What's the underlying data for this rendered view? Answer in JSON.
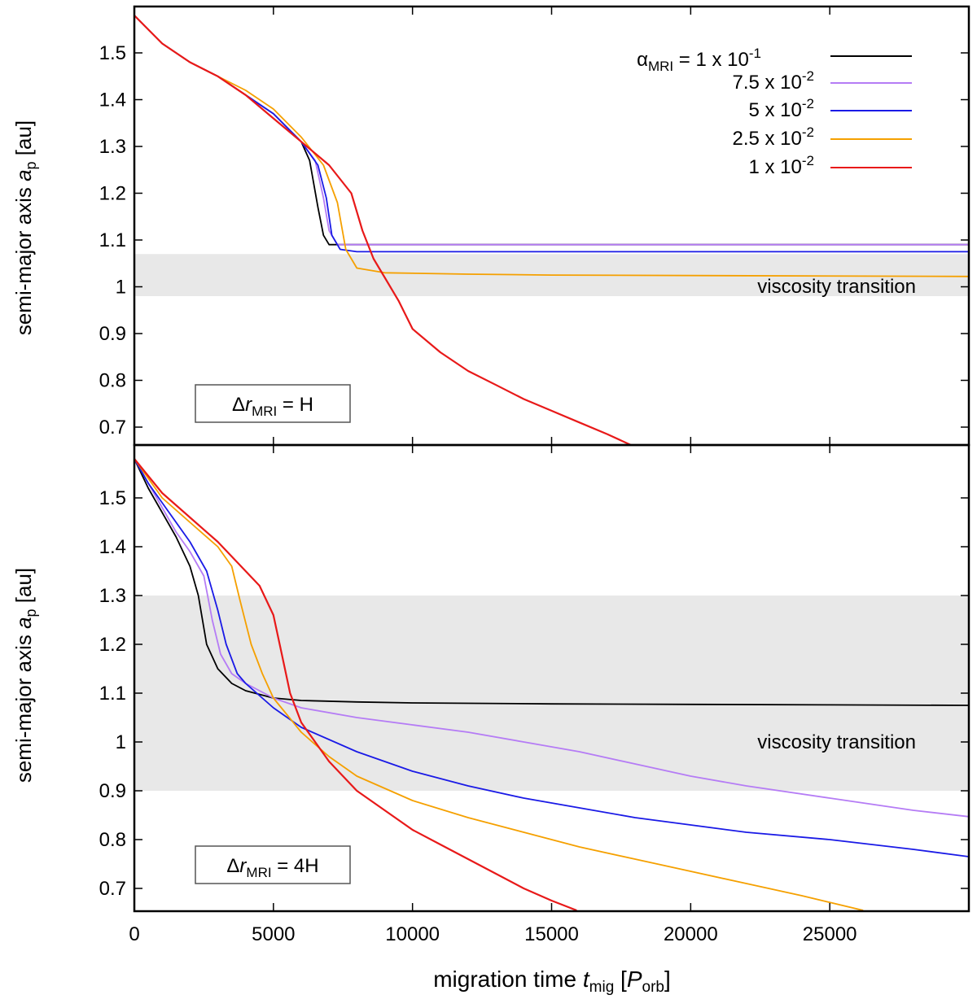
{
  "chart_data": [
    {
      "type": "line",
      "panel": "top",
      "xlim": [
        0,
        30000
      ],
      "ylim": [
        0.65,
        1.6
      ],
      "x_ticks": [
        0,
        5000,
        10000,
        15000,
        20000,
        25000
      ],
      "y_ticks": [
        0.7,
        0.8,
        0.9,
        1,
        1.1,
        1.2,
        1.3,
        1.4,
        1.5
      ],
      "y_tick_labels": [
        "0.7",
        "0.8",
        "0.9",
        "1",
        "1.1",
        "1.2",
        "1.3",
        "1.4",
        "1.5"
      ],
      "ylabel": {
        "prefix": "semi-major axis ",
        "var": "a",
        "sub": "p",
        "suffix": " [au]"
      },
      "band": {
        "y0": 0.98,
        "y1": 1.07,
        "label": "viscosity transition"
      },
      "box_label": {
        "prefix": "Δ",
        "var": "r",
        "sub": "MRI",
        "suffix": " = H"
      },
      "series": [
        {
          "name": "1 x 10^-1",
          "color": "#000000",
          "x": [
            0,
            1000,
            2000,
            3000,
            4000,
            5000,
            6000,
            6300,
            6600,
            6800,
            7000,
            7200,
            8000,
            15000,
            30000
          ],
          "y": [
            1.58,
            1.52,
            1.48,
            1.45,
            1.41,
            1.37,
            1.31,
            1.27,
            1.17,
            1.11,
            1.09,
            1.09,
            1.09,
            1.09,
            1.09
          ]
        },
        {
          "name": "7.5 x 10^-2",
          "color": "#b57cf5",
          "x": [
            0,
            1000,
            2000,
            3000,
            4000,
            5000,
            6000,
            6500,
            6800,
            7000,
            7300,
            8000,
            15000,
            30000
          ],
          "y": [
            1.58,
            1.52,
            1.48,
            1.45,
            1.41,
            1.37,
            1.31,
            1.27,
            1.19,
            1.12,
            1.09,
            1.09,
            1.09,
            1.09
          ]
        },
        {
          "name": "5 x 10^-2",
          "color": "#1a1ae6",
          "x": [
            0,
            1000,
            2000,
            3000,
            4000,
            5000,
            6000,
            6600,
            6900,
            7100,
            7400,
            8000,
            15000,
            30000
          ],
          "y": [
            1.58,
            1.52,
            1.48,
            1.45,
            1.41,
            1.37,
            1.31,
            1.26,
            1.19,
            1.11,
            1.08,
            1.075,
            1.075,
            1.075
          ]
        },
        {
          "name": "2.5 x 10^-2",
          "color": "#f5a000",
          "x": [
            0,
            1000,
            2000,
            3000,
            4000,
            5000,
            6000,
            6800,
            7300,
            7600,
            8000,
            9000,
            12000,
            15000,
            30000
          ],
          "y": [
            1.58,
            1.52,
            1.48,
            1.45,
            1.42,
            1.38,
            1.32,
            1.26,
            1.18,
            1.08,
            1.04,
            1.03,
            1.027,
            1.025,
            1.022
          ]
        },
        {
          "name": "1 x 10^-2",
          "color": "#e81919",
          "x": [
            0,
            1000,
            2000,
            3000,
            4000,
            5000,
            6000,
            7000,
            7800,
            8200,
            8600,
            9000,
            9500,
            10000,
            11000,
            12000,
            13000,
            14000,
            15000,
            16000,
            17000,
            18100
          ],
          "y": [
            1.58,
            1.52,
            1.48,
            1.45,
            1.41,
            1.36,
            1.31,
            1.26,
            1.2,
            1.12,
            1.06,
            1.02,
            0.97,
            0.91,
            0.86,
            0.82,
            0.79,
            0.76,
            0.735,
            0.71,
            0.685,
            0.655
          ]
        }
      ]
    },
    {
      "type": "line",
      "panel": "bottom",
      "xlim": [
        0,
        30000
      ],
      "ylim": [
        0.65,
        1.6
      ],
      "x_ticks": [
        0,
        5000,
        10000,
        15000,
        20000,
        25000
      ],
      "x_tick_labels": [
        "0",
        "5000",
        "10000",
        "15000",
        "20000",
        "25000"
      ],
      "y_ticks": [
        0.7,
        0.8,
        0.9,
        1,
        1.1,
        1.2,
        1.3,
        1.4,
        1.5
      ],
      "y_tick_labels": [
        "0.7",
        "0.8",
        "0.9",
        "1",
        "1.1",
        "1.2",
        "1.3",
        "1.4",
        "1.5"
      ],
      "ylabel": {
        "prefix": "semi-major axis ",
        "var": "a",
        "sub": "p",
        "suffix": " [au]"
      },
      "xlabel": {
        "prefix": "migration time ",
        "var": "t",
        "sub": "mig",
        "mid": " [",
        "var2": "P",
        "sub2": "orb",
        "suffix": "]"
      },
      "band": {
        "y0": 0.9,
        "y1": 1.3,
        "label": "viscosity transition"
      },
      "box_label": {
        "prefix": "Δ",
        "var": "r",
        "sub": "MRI",
        "suffix": " = 4H"
      },
      "series": [
        {
          "name": "1 x 10^-1",
          "color": "#000000",
          "x": [
            0,
            500,
            1000,
            1500,
            2000,
            2300,
            2600,
            3000,
            3500,
            4000,
            5000,
            6000,
            8000,
            10000,
            15000,
            20000,
            25000,
            30000
          ],
          "y": [
            1.58,
            1.52,
            1.47,
            1.42,
            1.36,
            1.3,
            1.2,
            1.15,
            1.12,
            1.105,
            1.09,
            1.085,
            1.082,
            1.08,
            1.078,
            1.077,
            1.076,
            1.075
          ]
        },
        {
          "name": "7.5 x 10^-2",
          "color": "#b57cf5",
          "x": [
            0,
            500,
            1000,
            1500,
            2000,
            2500,
            2800,
            3100,
            3500,
            4000,
            5000,
            6000,
            8000,
            10000,
            12000,
            14000,
            16000,
            18000,
            20000,
            22000,
            25000,
            28000,
            30000
          ],
          "y": [
            1.58,
            1.53,
            1.48,
            1.43,
            1.39,
            1.34,
            1.25,
            1.18,
            1.14,
            1.12,
            1.09,
            1.07,
            1.05,
            1.035,
            1.02,
            1.0,
            0.98,
            0.955,
            0.93,
            0.91,
            0.885,
            0.86,
            0.847
          ]
        },
        {
          "name": "5 x 10^-2",
          "color": "#1a1ae6",
          "x": [
            0,
            500,
            1000,
            2000,
            2600,
            3000,
            3300,
            3700,
            4000,
            5000,
            6000,
            8000,
            10000,
            12000,
            14000,
            16000,
            18000,
            20000,
            22000,
            25000,
            28000,
            30000
          ],
          "y": [
            1.58,
            1.53,
            1.49,
            1.41,
            1.35,
            1.27,
            1.2,
            1.14,
            1.12,
            1.07,
            1.03,
            0.98,
            0.94,
            0.91,
            0.885,
            0.865,
            0.845,
            0.83,
            0.815,
            0.8,
            0.78,
            0.765
          ]
        },
        {
          "name": "2.5 x 10^-2",
          "color": "#f5a000",
          "x": [
            0,
            1000,
            2000,
            3000,
            3500,
            3800,
            4200,
            4600,
            5000,
            6000,
            7000,
            8000,
            10000,
            12000,
            14000,
            16000,
            18000,
            20000,
            22000,
            24000,
            26200
          ],
          "y": [
            1.58,
            1.5,
            1.45,
            1.4,
            1.36,
            1.29,
            1.2,
            1.14,
            1.09,
            1.02,
            0.97,
            0.93,
            0.88,
            0.845,
            0.815,
            0.785,
            0.76,
            0.735,
            0.71,
            0.685,
            0.655
          ]
        },
        {
          "name": "1 x 10^-2",
          "color": "#e81919",
          "x": [
            0,
            1000,
            2000,
            3000,
            4000,
            4500,
            5000,
            5300,
            5600,
            6000,
            6500,
            7000,
            8000,
            9000,
            10000,
            11000,
            12000,
            13000,
            14000,
            15000,
            15900
          ],
          "y": [
            1.58,
            1.51,
            1.46,
            1.41,
            1.35,
            1.32,
            1.26,
            1.18,
            1.1,
            1.04,
            1.0,
            0.96,
            0.9,
            0.86,
            0.82,
            0.79,
            0.76,
            0.73,
            0.7,
            0.675,
            0.655
          ]
        }
      ]
    }
  ],
  "legend": {
    "placement": "top-right",
    "alpha_symbol": "α",
    "alpha_sub": "MRI",
    "entries": [
      {
        "prefix": " = 1 x 10",
        "exp": "-1",
        "color": "#000000"
      },
      {
        "prefix": "7.5 x 10",
        "exp": "-2",
        "color": "#b57cf5"
      },
      {
        "prefix": "5 x 10",
        "exp": "-2",
        "color": "#1a1ae6"
      },
      {
        "prefix": "2.5 x 10",
        "exp": "-2",
        "color": "#f5a000"
      },
      {
        "prefix": "1 x 10",
        "exp": "-2",
        "color": "#e81919"
      }
    ]
  },
  "colors": {
    "band": "#e8e8e8",
    "axis": "#000000",
    "box_stroke": "#555555"
  }
}
